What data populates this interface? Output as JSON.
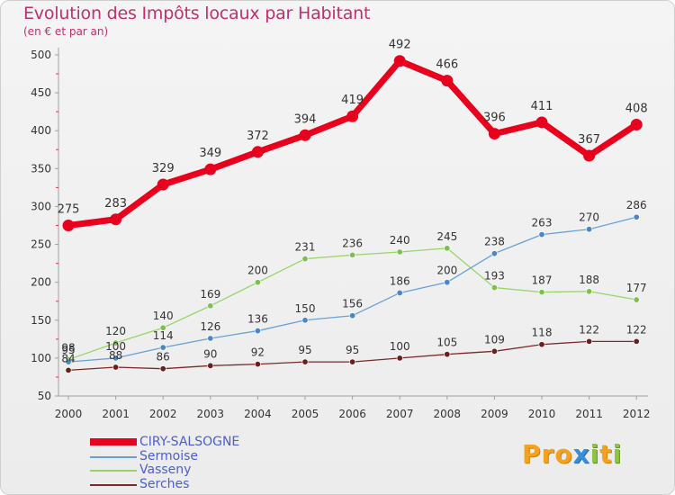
{
  "title": "Evolution des Impôts locaux par Habitant",
  "subtitle": "(en € et par an)",
  "logo": {
    "text": "Proxiti"
  },
  "chart_data": {
    "type": "line",
    "x": [
      "2000",
      "2001",
      "2002",
      "2003",
      "2004",
      "2005",
      "2006",
      "2007",
      "2008",
      "2009",
      "2010",
      "2011",
      "2012"
    ],
    "ylim": [
      50,
      500
    ],
    "yticks": [
      50,
      100,
      150,
      200,
      250,
      300,
      350,
      400,
      450,
      500
    ],
    "grid": false,
    "legend_position": "bottom-left",
    "series": [
      {
        "name": "CIRY-SALSOGNE",
        "color": "#e8001c",
        "values": [
          275,
          283,
          329,
          349,
          372,
          394,
          419,
          492,
          466,
          396,
          411,
          367,
          408
        ]
      },
      {
        "name": "Sermoise",
        "color": "#6aa0d6",
        "values": [
          95,
          100,
          114,
          126,
          136,
          150,
          156,
          186,
          200,
          238,
          263,
          270,
          286
        ]
      },
      {
        "name": "Vasseny",
        "color": "#99d46a",
        "values": [
          98,
          120,
          140,
          169,
          200,
          231,
          236,
          240,
          245,
          193,
          187,
          188,
          177
        ]
      },
      {
        "name": "Serches",
        "color": "#7a2a2a",
        "values": [
          84,
          88,
          86,
          90,
          92,
          95,
          95,
          100,
          105,
          109,
          118,
          122,
          122
        ]
      }
    ]
  }
}
